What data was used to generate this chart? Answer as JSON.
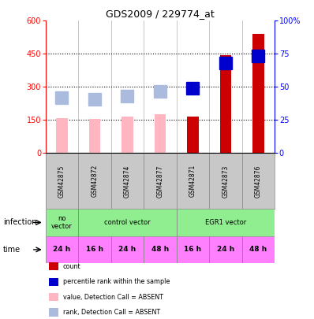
{
  "title": "GDS2009 / 229774_at",
  "samples": [
    "GSM42875",
    "GSM42872",
    "GSM42874",
    "GSM42877",
    "GSM42871",
    "GSM42873",
    "GSM42876"
  ],
  "count_values": [
    null,
    null,
    null,
    null,
    165,
    445,
    540
  ],
  "count_absent": [
    160,
    155,
    165,
    175,
    null,
    null,
    null
  ],
  "rank_values": [
    null,
    null,
    null,
    null,
    295,
    410,
    440
  ],
  "rank_absent": [
    250,
    245,
    260,
    280,
    null,
    null,
    null
  ],
  "ylim_left": [
    0,
    600
  ],
  "ylim_right": [
    0,
    100
  ],
  "yticks_left": [
    0,
    150,
    300,
    450,
    600
  ],
  "yticks_right": [
    0,
    25,
    50,
    75,
    100
  ],
  "infection_groups": [
    {
      "label": "no\nvector",
      "start": 0,
      "end": 1
    },
    {
      "label": "control vector",
      "start": 1,
      "end": 4
    },
    {
      "label": "EGR1 vector",
      "start": 4,
      "end": 7
    }
  ],
  "time_labels": [
    "24 h",
    "16 h",
    "24 h",
    "48 h",
    "16 h",
    "24 h",
    "48 h"
  ],
  "time_color": "#FF80FF",
  "infection_color": "#90EE90",
  "gsm_bg_color": "#C8C8C8",
  "bar_width": 0.35,
  "count_color": "#CC0000",
  "count_absent_color": "#FFB6C1",
  "rank_color": "#0000CC",
  "rank_absent_color": "#AABBDD",
  "dotted_lines": [
    150,
    300,
    450
  ]
}
